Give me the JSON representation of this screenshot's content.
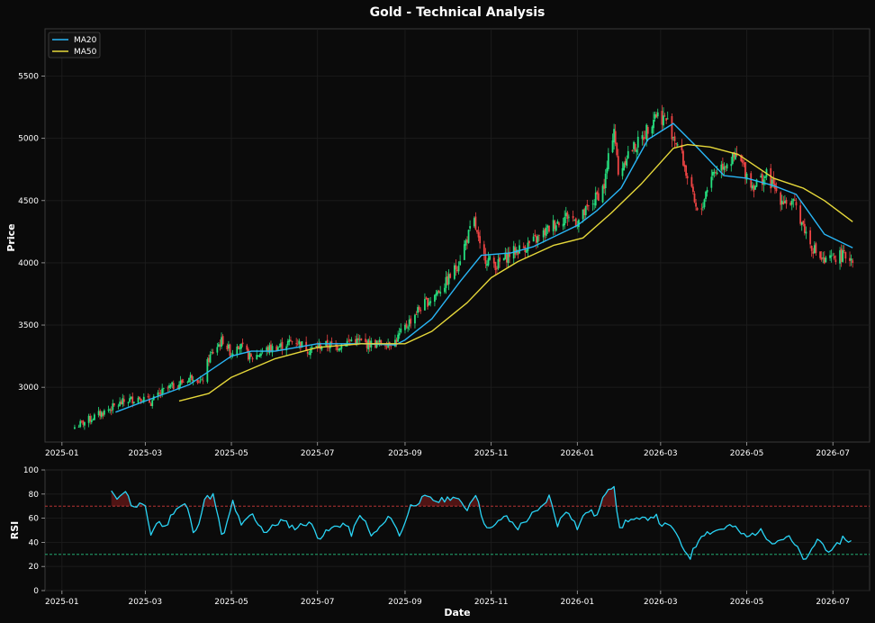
{
  "chart_data": [
    {
      "panel": "price",
      "type": "candlestick",
      "title": "Gold - Technical Analysis",
      "xlabel": "",
      "ylabel": "Price",
      "x_ticks": [
        "2025-01",
        "2025-03",
        "2025-05",
        "2025-07",
        "2025-09",
        "2025-11",
        "2026-01",
        "2026-03",
        "2026-05",
        "2026-07"
      ],
      "y_ticks": [
        3000,
        3500,
        4000,
        4500,
        5000,
        5500
      ],
      "ylim": [
        2560,
        5880
      ],
      "xlim": [
        "2024-12-20",
        "2026-07-27"
      ],
      "grid": true,
      "legend_position": "top-left",
      "colors": {
        "up": "#26e07f",
        "down": "#ef4444",
        "ma20": "#29b6f6",
        "ma50": "#e6d83a"
      },
      "close_series": [
        [
          "2025-01-10",
          2680
        ],
        [
          "2025-01-20",
          2740
        ],
        [
          "2025-02-01",
          2810
        ],
        [
          "2025-02-15",
          2890
        ],
        [
          "2025-02-25",
          2920
        ],
        [
          "2025-03-05",
          2880
        ],
        [
          "2025-03-15",
          2980
        ],
        [
          "2025-03-25",
          3030
        ],
        [
          "2025-04-05",
          3100
        ],
        [
          "2025-04-10",
          3030
        ],
        [
          "2025-04-15",
          3230
        ],
        [
          "2025-04-20",
          3320
        ],
        [
          "2025-04-25",
          3380
        ],
        [
          "2025-05-01",
          3270
        ],
        [
          "2025-05-05",
          3360
        ],
        [
          "2025-05-15",
          3230
        ],
        [
          "2025-05-25",
          3300
        ],
        [
          "2025-06-05",
          3330
        ],
        [
          "2025-06-15",
          3380
        ],
        [
          "2025-06-25",
          3300
        ],
        [
          "2025-07-05",
          3340
        ],
        [
          "2025-07-15",
          3330
        ],
        [
          "2025-07-25",
          3380
        ],
        [
          "2025-08-05",
          3350
        ],
        [
          "2025-08-15",
          3350
        ],
        [
          "2025-08-25",
          3370
        ],
        [
          "2025-09-01",
          3480
        ],
        [
          "2025-09-10",
          3620
        ],
        [
          "2025-09-20",
          3720
        ],
        [
          "2025-09-30",
          3840
        ],
        [
          "2025-10-08",
          3980
        ],
        [
          "2025-10-15",
          4200
        ],
        [
          "2025-10-20",
          4330
        ],
        [
          "2025-10-25",
          4060
        ],
        [
          "2025-11-05",
          3980
        ],
        [
          "2025-11-15",
          4080
        ],
        [
          "2025-11-25",
          4130
        ],
        [
          "2025-12-05",
          4200
        ],
        [
          "2025-12-15",
          4310
        ],
        [
          "2025-12-25",
          4380
        ],
        [
          "2026-01-01",
          4330
        ],
        [
          "2026-01-10",
          4450
        ],
        [
          "2026-01-20",
          4620
        ],
        [
          "2026-01-27",
          5100
        ],
        [
          "2026-01-30",
          4700
        ],
        [
          "2026-02-05",
          4870
        ],
        [
          "2026-02-15",
          4980
        ],
        [
          "2026-02-25",
          5200
        ],
        [
          "2026-03-05",
          5150
        ],
        [
          "2026-03-15",
          4900
        ],
        [
          "2026-03-22",
          4600
        ],
        [
          "2026-03-28",
          4350
        ],
        [
          "2026-04-05",
          4700
        ],
        [
          "2026-04-15",
          4800
        ],
        [
          "2026-04-25",
          4850
        ],
        [
          "2026-05-05",
          4620
        ],
        [
          "2026-05-15",
          4700
        ],
        [
          "2026-05-25",
          4520
        ],
        [
          "2026-06-05",
          4450
        ],
        [
          "2026-06-15",
          4150
        ],
        [
          "2026-06-25",
          4000
        ],
        [
          "2026-07-05",
          4060
        ],
        [
          "2026-07-15",
          4040
        ]
      ],
      "series": [
        {
          "name": "MA20",
          "points": [
            [
              "2025-02-08",
              2800
            ],
            [
              "2025-03-01",
              2890
            ],
            [
              "2025-04-01",
              3020
            ],
            [
              "2025-05-01",
              3250
            ],
            [
              "2025-05-15",
              3290
            ],
            [
              "2025-06-01",
              3290
            ],
            [
              "2025-07-01",
              3350
            ],
            [
              "2025-08-01",
              3350
            ],
            [
              "2025-08-25",
              3340
            ],
            [
              "2025-09-01",
              3380
            ],
            [
              "2025-09-20",
              3550
            ],
            [
              "2025-10-10",
              3850
            ],
            [
              "2025-10-25",
              4060
            ],
            [
              "2025-11-15",
              4080
            ],
            [
              "2025-12-01",
              4130
            ],
            [
              "2026-01-01",
              4300
            ],
            [
              "2026-01-15",
              4420
            ],
            [
              "2026-02-01",
              4600
            ],
            [
              "2026-02-20",
              4990
            ],
            [
              "2026-03-10",
              5120
            ],
            [
              "2026-03-25",
              4950
            ],
            [
              "2026-04-15",
              4700
            ],
            [
              "2026-05-01",
              4680
            ],
            [
              "2026-05-20",
              4620
            ],
            [
              "2026-06-05",
              4550
            ],
            [
              "2026-06-25",
              4230
            ],
            [
              "2026-07-15",
              4120
            ]
          ]
        },
        {
          "name": "MA50",
          "points": [
            [
              "2025-03-25",
              2890
            ],
            [
              "2025-04-15",
              2950
            ],
            [
              "2025-05-01",
              3080
            ],
            [
              "2025-06-01",
              3230
            ],
            [
              "2025-07-01",
              3320
            ],
            [
              "2025-08-01",
              3350
            ],
            [
              "2025-09-01",
              3350
            ],
            [
              "2025-09-20",
              3450
            ],
            [
              "2025-10-15",
              3680
            ],
            [
              "2025-11-01",
              3880
            ],
            [
              "2025-11-20",
              4010
            ],
            [
              "2025-12-15",
              4140
            ],
            [
              "2026-01-05",
              4200
            ],
            [
              "2026-01-25",
              4400
            ],
            [
              "2026-02-15",
              4630
            ],
            [
              "2026-03-10",
              4920
            ],
            [
              "2026-03-20",
              4950
            ],
            [
              "2026-04-05",
              4930
            ],
            [
              "2026-04-25",
              4870
            ],
            [
              "2026-05-20",
              4680
            ],
            [
              "2026-06-10",
              4600
            ],
            [
              "2026-06-25",
              4500
            ],
            [
              "2026-07-15",
              4330
            ]
          ]
        }
      ]
    },
    {
      "panel": "rsi",
      "type": "line",
      "xlabel": "Date",
      "ylabel": "RSI",
      "x_ticks": [
        "2025-01",
        "2025-03",
        "2025-05",
        "2025-07",
        "2025-09",
        "2025-11",
        "2026-01",
        "2026-03",
        "2026-05",
        "2026-07"
      ],
      "y_ticks": [
        0,
        20,
        40,
        60,
        80,
        100
      ],
      "ylim": [
        0,
        100
      ],
      "xlim": [
        "2024-12-20",
        "2026-07-27"
      ],
      "grid": true,
      "reference_lines": [
        {
          "value": 70,
          "color": "#d13a3a"
        },
        {
          "value": 30,
          "color": "#26c281"
        }
      ],
      "line_color": "#29d4f5",
      "series": [
        {
          "name": "RSI",
          "points": [
            [
              "2025-02-05",
              82
            ],
            [
              "2025-02-08",
              75
            ],
            [
              "2025-02-12",
              82
            ],
            [
              "2025-02-17",
              80
            ],
            [
              "2025-02-20",
              67
            ],
            [
              "2025-02-25",
              72
            ],
            [
              "2025-03-01",
              68
            ],
            [
              "2025-03-05",
              47
            ],
            [
              "2025-03-10",
              58
            ],
            [
              "2025-03-15",
              52
            ],
            [
              "2025-03-22",
              68
            ],
            [
              "2025-03-30",
              72
            ],
            [
              "2025-04-05",
              44
            ],
            [
              "2025-04-12",
              76
            ],
            [
              "2025-04-18",
              79
            ],
            [
              "2025-04-25",
              42
            ],
            [
              "2025-05-02",
              74
            ],
            [
              "2025-05-08",
              53
            ],
            [
              "2025-05-15",
              64
            ],
            [
              "2025-05-25",
              48
            ],
            [
              "2025-06-05",
              58
            ],
            [
              "2025-06-15",
              52
            ],
            [
              "2025-06-25",
              57
            ],
            [
              "2025-07-02",
              44
            ],
            [
              "2025-07-12",
              52
            ],
            [
              "2025-07-20",
              56
            ],
            [
              "2025-07-25",
              47
            ],
            [
              "2025-08-01",
              64
            ],
            [
              "2025-08-08",
              45
            ],
            [
              "2025-08-15",
              53
            ],
            [
              "2025-08-22",
              62
            ],
            [
              "2025-08-28",
              45
            ],
            [
              "2025-09-05",
              70
            ],
            [
              "2025-09-15",
              77
            ],
            [
              "2025-09-25",
              74
            ],
            [
              "2025-10-05",
              78
            ],
            [
              "2025-10-15",
              68
            ],
            [
              "2025-10-22",
              83
            ],
            [
              "2025-10-25",
              60
            ],
            [
              "2025-11-01",
              50
            ],
            [
              "2025-11-10",
              62
            ],
            [
              "2025-11-20",
              52
            ],
            [
              "2025-11-30",
              63
            ],
            [
              "2025-12-05",
              66
            ],
            [
              "2025-12-12",
              78
            ],
            [
              "2025-12-18",
              55
            ],
            [
              "2025-12-25",
              68
            ],
            [
              "2026-01-01",
              52
            ],
            [
              "2026-01-08",
              67
            ],
            [
              "2026-01-15",
              62
            ],
            [
              "2026-01-22",
              85
            ],
            [
              "2026-01-28",
              88
            ],
            [
              "2026-01-30",
              48
            ],
            [
              "2026-02-05",
              59
            ],
            [
              "2026-02-15",
              58
            ],
            [
              "2026-02-25",
              63
            ],
            [
              "2026-03-01",
              55
            ],
            [
              "2026-03-10",
              52
            ],
            [
              "2026-03-15",
              38
            ],
            [
              "2026-03-22",
              28
            ],
            [
              "2026-03-30",
              47
            ],
            [
              "2026-04-10",
              50
            ],
            [
              "2026-04-20",
              54
            ],
            [
              "2026-05-01",
              44
            ],
            [
              "2026-05-10",
              50
            ],
            [
              "2026-05-20",
              40
            ],
            [
              "2026-05-30",
              45
            ],
            [
              "2026-06-05",
              36
            ],
            [
              "2026-06-12",
              24
            ],
            [
              "2026-06-20",
              43
            ],
            [
              "2026-06-30",
              31
            ],
            [
              "2026-07-08",
              44
            ],
            [
              "2026-07-15",
              40
            ]
          ]
        }
      ]
    }
  ]
}
